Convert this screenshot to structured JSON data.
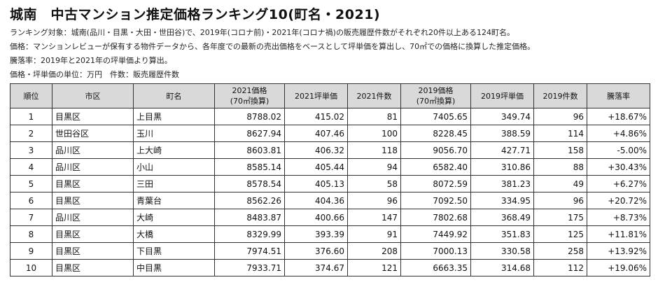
{
  "title": "城南　中古マンション推定価格ランキング10(町名・2021)",
  "notes": [
    "ランキング対象：城南(品川・目黒・大田・世田谷)で、2019年(コロナ前)・2021年(コロナ禍)の販売履歴件数がそれぞれ20件以上ある124町名。",
    "価格：マンションレビューが保有する物件データから、各年度での最新の売出価格をベースとして坪単価を算出し、70㎡での価格に換算した推定価格。",
    "騰落率：2019年と2021年の坪単価より算出。",
    "価格・坪単価の単位：万円　件数：販売履歴件数"
  ],
  "table": {
    "headers": [
      "順位",
      "市区",
      "町名",
      "2021価格",
      "2021坪単価",
      "2021件数",
      "2019価格",
      "2019坪単価",
      "2019件数",
      "騰落率"
    ],
    "header_sub": [
      "",
      "",
      "",
      "(70㎡換算)",
      "",
      "",
      "(70㎡換算)",
      "",
      "",
      ""
    ],
    "rows": [
      [
        "1",
        "目黒区",
        "上目黒",
        "8788.02",
        "415.02",
        "81",
        "7405.65",
        "349.74",
        "96",
        "+18.67%"
      ],
      [
        "2",
        "世田谷区",
        "玉川",
        "8627.94",
        "407.46",
        "100",
        "8228.45",
        "388.59",
        "114",
        "+4.86%"
      ],
      [
        "3",
        "品川区",
        "上大崎",
        "8603.81",
        "406.32",
        "118",
        "9056.70",
        "427.71",
        "158",
        "-5.00%"
      ],
      [
        "4",
        "品川区",
        "小山",
        "8585.14",
        "405.44",
        "94",
        "6582.40",
        "310.86",
        "88",
        "+30.43%"
      ],
      [
        "5",
        "目黒区",
        "三田",
        "8578.54",
        "405.13",
        "58",
        "8072.59",
        "381.23",
        "49",
        "+6.27%"
      ],
      [
        "6",
        "目黒区",
        "青葉台",
        "8562.26",
        "404.36",
        "96",
        "7092.50",
        "334.95",
        "96",
        "+20.72%"
      ],
      [
        "7",
        "品川区",
        "大崎",
        "8483.87",
        "400.66",
        "147",
        "7802.68",
        "368.49",
        "175",
        "+8.73%"
      ],
      [
        "8",
        "目黒区",
        "大橋",
        "8329.99",
        "393.39",
        "91",
        "7449.92",
        "351.83",
        "125",
        "+11.81%"
      ],
      [
        "9",
        "目黒区",
        "下目黒",
        "7974.51",
        "376.60",
        "208",
        "7000.13",
        "330.58",
        "258",
        "+13.92%"
      ],
      [
        "10",
        "目黒区",
        "中目黒",
        "7933.71",
        "374.67",
        "121",
        "6663.35",
        "314.68",
        "112",
        "+19.06%"
      ]
    ]
  }
}
